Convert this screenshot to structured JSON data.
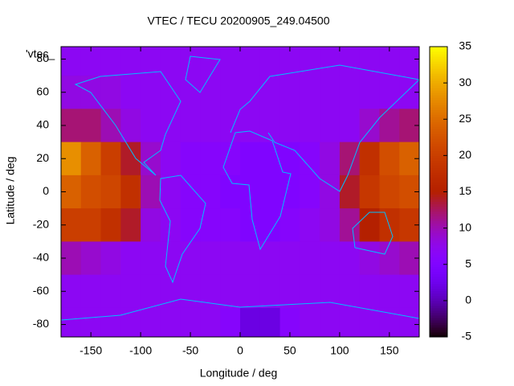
{
  "chart_data": {
    "type": "heatmap",
    "title": "VTEC / TECU 20200905_249.04500",
    "x_label": "Longitude / deg",
    "y_label": "Latitude / deg",
    "key_label": "'vtec_",
    "x": [
      -170,
      -150,
      -130,
      -110,
      -90,
      -70,
      -50,
      -30,
      -10,
      10,
      30,
      50,
      70,
      90,
      110,
      130,
      150,
      170
    ],
    "y": [
      80,
      60,
      40,
      20,
      0,
      -20,
      -40,
      -60,
      -80
    ],
    "z": [
      [
        7,
        7,
        7,
        7,
        7,
        7,
        7,
        7,
        7,
        7,
        7,
        7,
        7,
        7,
        7,
        7,
        7,
        7
      ],
      [
        8,
        8,
        8,
        7,
        7,
        7,
        7,
        7,
        7,
        7,
        7,
        7,
        7,
        7,
        7,
        7,
        7,
        7
      ],
      [
        12,
        12,
        10,
        8,
        7,
        7,
        7,
        7,
        7,
        7,
        7,
        7,
        7,
        7,
        7,
        9,
        11,
        12
      ],
      [
        28,
        24,
        20,
        14,
        9,
        7,
        6,
        6,
        6,
        5,
        5,
        5,
        6,
        8,
        12,
        18,
        22,
        24
      ],
      [
        24,
        22,
        21,
        18,
        10,
        7,
        6,
        6,
        5,
        5,
        5,
        5,
        6,
        8,
        14,
        19,
        21,
        22
      ],
      [
        20,
        20,
        18,
        14,
        8,
        7,
        6,
        6,
        6,
        5,
        5,
        6,
        7,
        8,
        11,
        15,
        18,
        19
      ],
      [
        10,
        9,
        8,
        7,
        7,
        7,
        7,
        7,
        7,
        7,
        7,
        7,
        7,
        7,
        7,
        8,
        9,
        10
      ],
      [
        7,
        7,
        7,
        7,
        7,
        7,
        7,
        7,
        7,
        7,
        7,
        7,
        7,
        7,
        7,
        7,
        7,
        7
      ],
      [
        7,
        7,
        7,
        7,
        7,
        7,
        7,
        7,
        6,
        2,
        2,
        6,
        7,
        7,
        7,
        7,
        7,
        7
      ]
    ],
    "cell_size": [
      20,
      20
    ],
    "xlim": [
      -180,
      180
    ],
    "ylim": [
      -87.5,
      87.5
    ],
    "xticks": [
      -150,
      -100,
      -50,
      0,
      50,
      100,
      150
    ],
    "yticks": [
      -80,
      -60,
      -40,
      -20,
      0,
      20,
      40,
      60,
      80
    ],
    "zlim": [
      -5,
      35
    ],
    "zticks": [
      -5,
      0,
      5,
      10,
      15,
      20,
      25,
      30,
      35
    ],
    "palette": [
      7,
      5,
      15
    ],
    "coastline_color": "#00bfff"
  }
}
